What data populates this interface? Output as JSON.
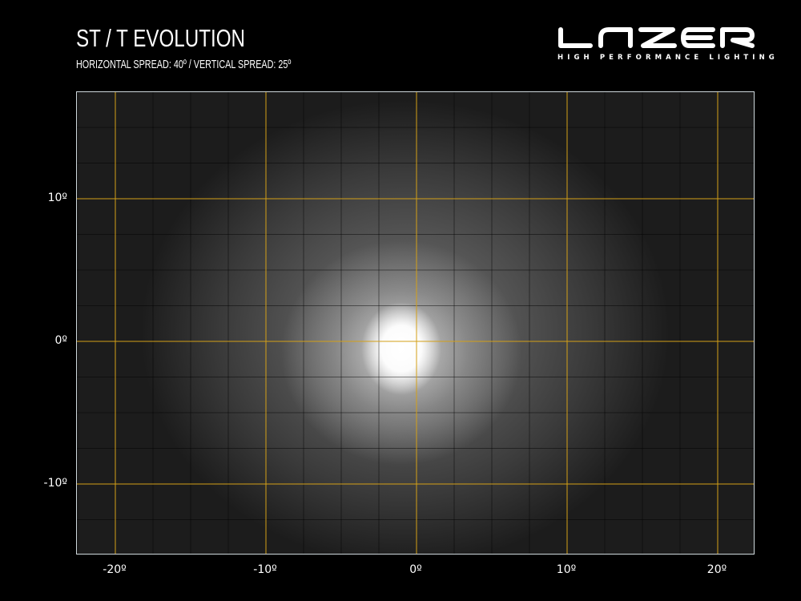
{
  "header": {
    "title": "ST / T EVOLUTION",
    "subtitle": "HORIZONTAL SPREAD: 40º  /  VERTICAL SPREAD:  25º"
  },
  "logo": {
    "brand": "LAZER",
    "tagline": "HIGH PERFORMANCE LIGHTING"
  },
  "axes": {
    "x_ticks": [
      "-20º",
      "-10º",
      "0º",
      "10º",
      "20º"
    ],
    "y_ticks": [
      "10º",
      "0º",
      "-10º"
    ],
    "grid_color": "#d4a017"
  }
}
